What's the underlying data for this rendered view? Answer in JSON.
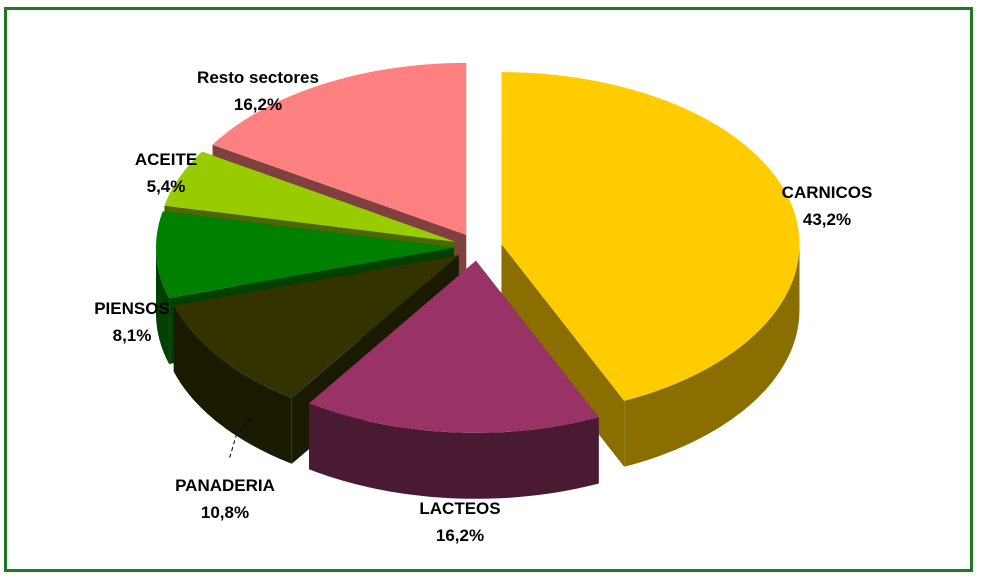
{
  "chart_data": {
    "type": "pie",
    "variant": "3d-exploded",
    "title": "",
    "slices": [
      {
        "name": "CARNICOS",
        "value": 43.2,
        "label": "43,2%",
        "top_color": "#FFCC00",
        "side_color": "#8A6E00"
      },
      {
        "name": "LACTEOS",
        "value": 16.2,
        "label": "16,2%",
        "top_color": "#993366",
        "side_color": "#4A1A33"
      },
      {
        "name": "PANADERIA",
        "value": 10.8,
        "label": "10,8%",
        "top_color": "#333300",
        "side_color": "#1A1A00"
      },
      {
        "name": "PIENSOS",
        "value": 8.1,
        "label": "8,1%",
        "top_color": "#008000",
        "side_color": "#004000"
      },
      {
        "name": "ACEITE",
        "value": 5.4,
        "label": "5,4%",
        "top_color": "#99CC00",
        "side_color": "#4D6600"
      },
      {
        "name": "Resto sectores",
        "value": 16.2,
        "label": "16,2%",
        "top_color": "#FF8080",
        "side_color": "#804040"
      }
    ],
    "legend": "none",
    "data_labels": "outside"
  },
  "colors": {
    "frame_border": "#1F7A1F",
    "background": "#FFFFFF"
  }
}
